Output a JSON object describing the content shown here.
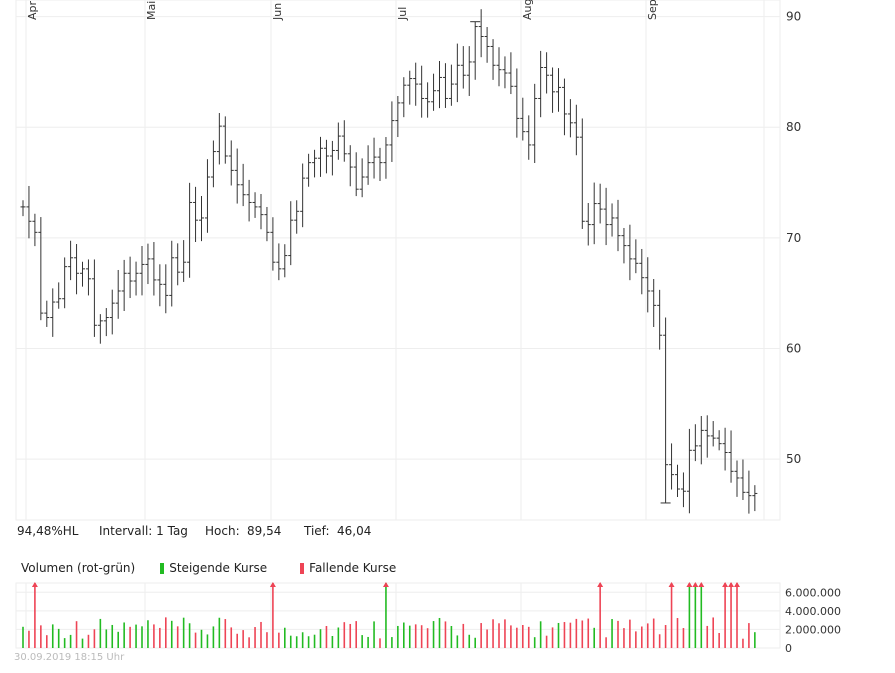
{
  "info": {
    "perf_label": "94,48%HL",
    "interval_label": "Intervall: 1 Tag",
    "high_label": "Hoch:",
    "high_value": "89,54",
    "low_label": "Tief:",
    "low_value": "46,04"
  },
  "volume_legend": {
    "title": "Volumen (rot-grün)",
    "rising_label": "Steigende Kurse",
    "falling_label": "Fallende Kurse"
  },
  "footer": {
    "timestamp": "30.09.2019 18:15 Uhr"
  },
  "colors": {
    "rising": "#22bb22",
    "falling": "#ee4455",
    "bars": "#333333",
    "grid": "#eeeeee"
  },
  "chart_data": [
    {
      "type": "ohlc",
      "x_tick_labels": [
        "Apr",
        "Mai",
        "Jun",
        "Jul",
        "Aug",
        "Sep"
      ],
      "y_ticks": [
        50,
        60,
        70,
        80,
        90
      ],
      "ylim": [
        44.5,
        91.5
      ],
      "high": 89.54,
      "low": 46.04,
      "series": [
        {
          "closes": [
            72.8,
            71.5,
            70.5,
            63.2,
            62.8,
            64.2,
            64.5,
            67.4,
            68.2,
            66.8,
            67.2,
            66.3,
            62.1,
            62.5,
            62.8,
            64.1,
            65.2,
            66.8,
            66.1,
            66.8,
            67.6,
            68.1,
            66.2,
            65.8,
            64.8,
            68.2,
            66.9,
            67.8,
            73.2,
            71.6,
            71.8,
            75.5,
            77.8,
            80.1,
            77.4,
            76.1,
            74.8,
            73.9,
            73.2,
            72.8,
            72.1,
            70.5,
            67.8,
            67.2,
            68.4,
            71.6,
            72.4,
            75.4,
            76.8,
            77.2,
            78.1,
            77.4,
            77.9,
            79.2,
            77.6,
            76.4,
            74.4,
            75.5,
            76.8,
            77.3,
            76.8,
            78.4,
            80.6,
            82.2,
            83.8,
            84.4,
            83.9,
            82.6,
            82.3,
            83.3,
            84.5,
            82.6,
            83.9,
            85.6,
            84.7,
            85.9,
            89.1,
            88.2,
            87.3,
            85.6,
            85.2,
            84.9,
            83.7,
            80.8,
            79.6,
            78.4,
            82.6,
            85.4,
            84.7,
            83.2,
            83.6,
            81.2,
            80.4,
            79.1,
            71.5,
            71.2,
            73.1,
            72.6,
            71.2,
            71.8,
            70.2,
            69.3,
            68.1,
            67.7,
            66.4,
            65.2,
            63.9,
            61.2,
            49.5,
            48.6,
            47.3,
            47.1,
            50.8,
            51.2,
            52.6,
            52.1,
            51.9,
            51.4,
            50.6,
            48.9,
            48.3,
            47.0,
            46.7,
            46.9
          ]
        }
      ]
    },
    {
      "type": "bar",
      "title": "Volumen (rot-grün)",
      "y_ticks": [
        0,
        2000000,
        4000000,
        6000000
      ],
      "y_tick_labels": [
        "0",
        "2.000.000",
        "4.000.000",
        "6.000.000"
      ],
      "ylim": [
        0,
        7000000
      ],
      "clipped_marker_color": "#ee4455"
    }
  ]
}
